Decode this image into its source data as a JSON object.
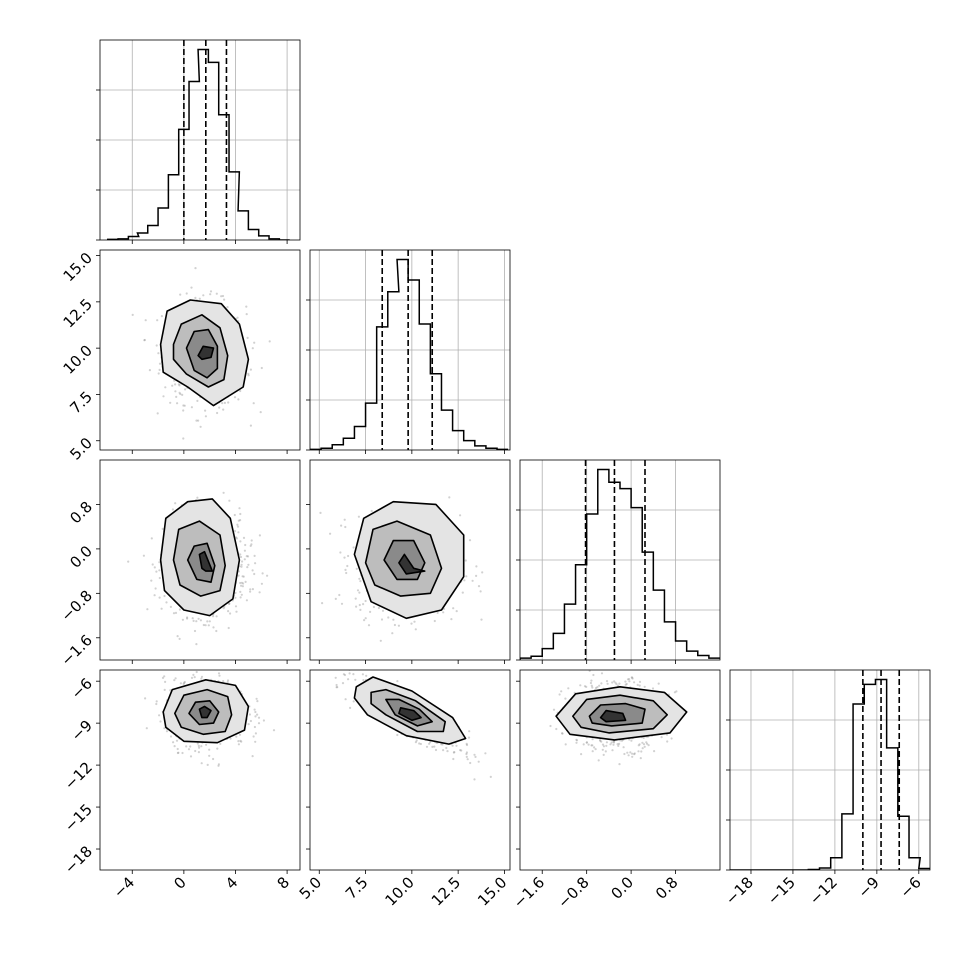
{
  "chart_data": {
    "type": "corner",
    "grid": true,
    "variables": [
      {
        "range": [
          -6.5,
          9.0
        ],
        "ticks": [
          -4,
          0,
          4,
          8
        ],
        "tick_labels": [
          "−4",
          "0",
          "4",
          "8"
        ],
        "quantiles": [
          0.0,
          1.7,
          3.3
        ],
        "histogram": {
          "bin_centers": [
            -5.5,
            -4.7,
            -3.9,
            -3.2,
            -2.4,
            -1.6,
            -0.8,
            0.0,
            0.8,
            1.5,
            2.3,
            3.1,
            3.9,
            4.6,
            5.4,
            6.2,
            7.0,
            7.8
          ],
          "counts": [
            1,
            2,
            6,
            12,
            25,
            55,
            112,
            190,
            272,
            327,
            305,
            215,
            117,
            50,
            18,
            7,
            2,
            0
          ]
        }
      },
      {
        "range": [
          4.5,
          15.3
        ],
        "ticks": [
          5.0,
          7.5,
          10.0,
          12.5,
          15.0
        ],
        "tick_labels": [
          "5.0",
          "7.5",
          "10.0",
          "12.5",
          "15.0"
        ],
        "quantiles": [
          8.4,
          9.8,
          11.1
        ],
        "histogram": {
          "bin_centers": [
            4.8,
            5.4,
            6.0,
            6.6,
            7.2,
            7.8,
            8.4,
            9.0,
            9.5,
            10.1,
            10.7,
            11.3,
            11.9,
            12.5,
            13.1,
            13.7,
            14.3,
            14.9
          ],
          "counts": [
            1,
            3,
            9,
            20,
            40,
            80,
            210,
            270,
            325,
            290,
            215,
            130,
            68,
            33,
            16,
            7,
            3,
            1
          ]
        }
      },
      {
        "range": [
          -2.0,
          1.6
        ],
        "ticks": [
          -1.6,
          -0.8,
          0.0,
          0.8
        ],
        "tick_labels": [
          "−1.6",
          "−0.8",
          "0.0",
          "0.8"
        ],
        "quantiles": [
          -0.82,
          -0.3,
          0.25
        ],
        "histogram": {
          "bin_centers": [
            -1.9,
            -1.7,
            -1.5,
            -1.3,
            -1.1,
            -0.9,
            -0.7,
            -0.5,
            -0.3,
            -0.1,
            0.1,
            0.3,
            0.5,
            0.7,
            0.9,
            1.1,
            1.3,
            1.5
          ],
          "counts": [
            3,
            6,
            18,
            42,
            88,
            150,
            230,
            300,
            280,
            270,
            240,
            170,
            110,
            60,
            30,
            14,
            7,
            3
          ]
        }
      },
      {
        "range": [
          -19.5,
          -5.2
        ],
        "ticks": [
          -18,
          -15,
          -12,
          -9,
          -6
        ],
        "tick_labels": [
          "−18",
          "−15",
          "−12",
          "−9",
          "−6"
        ],
        "quantiles": [
          -10.0,
          -8.7,
          -7.4
        ],
        "histogram": {
          "bin_centers": [
            -19.1,
            -18.3,
            -17.5,
            -16.7,
            -15.9,
            -15.1,
            -14.3,
            -13.5,
            -12.7,
            -11.9,
            -11.1,
            -10.3,
            -9.5,
            -8.7,
            -7.9,
            -7.1,
            -6.3,
            -5.6
          ],
          "counts": [
            0,
            0,
            0,
            0,
            0,
            0,
            0,
            1,
            4,
            25,
            115,
            340,
            380,
            390,
            250,
            110,
            25,
            3
          ]
        }
      }
    ],
    "pairs": [
      {
        "row": 1,
        "col": 0,
        "center": [
          1.6,
          9.7
        ],
        "sigma": [
          1.6,
          1.4
        ],
        "rho": -0.1,
        "contours": [
          [
            [
              -1.8,
              10.2
            ],
            [
              -1.3,
              12.0
            ],
            [
              0.5,
              12.6
            ],
            [
              2.9,
              12.4
            ],
            [
              4.3,
              11.3
            ],
            [
              5.0,
              9.4
            ],
            [
              4.6,
              7.9
            ],
            [
              2.3,
              6.9
            ],
            [
              0.3,
              7.9
            ],
            [
              -1.6,
              8.7
            ]
          ],
          [
            [
              -0.8,
              10.2
            ],
            [
              -0.2,
              11.3
            ],
            [
              1.4,
              11.8
            ],
            [
              2.8,
              11.1
            ],
            [
              3.4,
              9.6
            ],
            [
              3.1,
              8.3
            ],
            [
              1.9,
              7.9
            ],
            [
              0.2,
              8.6
            ],
            [
              -0.8,
              9.4
            ]
          ],
          [
            [
              0.2,
              10.0
            ],
            [
              0.8,
              10.9
            ],
            [
              1.9,
              11.0
            ],
            [
              2.6,
              10.1
            ],
            [
              2.6,
              8.9
            ],
            [
              1.8,
              8.4
            ],
            [
              0.8,
              8.8
            ]
          ],
          [
            [
              1.1,
              9.6
            ],
            [
              1.5,
              10.1
            ],
            [
              2.3,
              10.0
            ],
            [
              2.1,
              9.5
            ],
            [
              1.4,
              9.4
            ]
          ]
        ]
      },
      {
        "row": 2,
        "col": 0,
        "center": [
          1.7,
          -0.3
        ],
        "sigma": [
          1.6,
          0.45
        ],
        "rho": 0.0,
        "contours": [
          [
            [
              -1.8,
              -0.2
            ],
            [
              -1.4,
              0.55
            ],
            [
              0.3,
              0.85
            ],
            [
              2.2,
              0.9
            ],
            [
              3.6,
              0.55
            ],
            [
              4.3,
              -0.2
            ],
            [
              3.8,
              -0.9
            ],
            [
              2.0,
              -1.2
            ],
            [
              0.0,
              -1.1
            ],
            [
              -1.5,
              -0.75
            ]
          ],
          [
            [
              -0.8,
              -0.2
            ],
            [
              -0.4,
              0.35
            ],
            [
              1.2,
              0.5
            ],
            [
              2.8,
              0.25
            ],
            [
              3.2,
              -0.3
            ],
            [
              2.8,
              -0.75
            ],
            [
              1.3,
              -0.85
            ],
            [
              -0.3,
              -0.65
            ]
          ],
          [
            [
              0.3,
              -0.2
            ],
            [
              0.8,
              0.05
            ],
            [
              1.8,
              0.1
            ],
            [
              2.4,
              -0.3
            ],
            [
              2.1,
              -0.6
            ],
            [
              1.0,
              -0.55
            ]
          ],
          [
            [
              1.2,
              -0.1
            ],
            [
              1.6,
              -0.05
            ],
            [
              2.2,
              -0.4
            ],
            [
              1.7,
              -0.4
            ],
            [
              1.4,
              -0.35
            ]
          ]
        ]
      },
      {
        "row": 2,
        "col": 1,
        "center": [
          9.8,
          -0.3
        ],
        "sigma": [
          1.4,
          0.45
        ],
        "rho": 0.0,
        "contours": [
          [
            [
              6.9,
              -0.1
            ],
            [
              7.4,
              0.55
            ],
            [
              9.0,
              0.85
            ],
            [
              11.3,
              0.8
            ],
            [
              12.8,
              0.25
            ],
            [
              12.8,
              -0.5
            ],
            [
              11.6,
              -1.1
            ],
            [
              9.7,
              -1.25
            ],
            [
              7.8,
              -0.95
            ]
          ],
          [
            [
              7.5,
              -0.25
            ],
            [
              7.9,
              0.35
            ],
            [
              9.2,
              0.5
            ],
            [
              11.0,
              0.25
            ],
            [
              11.6,
              -0.35
            ],
            [
              11.0,
              -0.8
            ],
            [
              9.4,
              -0.85
            ],
            [
              8.0,
              -0.65
            ]
          ],
          [
            [
              8.5,
              -0.2
            ],
            [
              9.0,
              0.15
            ],
            [
              10.1,
              0.15
            ],
            [
              10.7,
              -0.25
            ],
            [
              10.3,
              -0.55
            ],
            [
              9.2,
              -0.55
            ]
          ],
          [
            [
              9.3,
              -0.25
            ],
            [
              9.6,
              -0.1
            ],
            [
              10.1,
              -0.35
            ],
            [
              10.7,
              -0.4
            ],
            [
              9.7,
              -0.45
            ]
          ]
        ]
      },
      {
        "row": 3,
        "col": 0,
        "center": [
          1.7,
          -8.3
        ],
        "sigma": [
          1.6,
          1.2
        ],
        "rho": 0.0,
        "contours": [
          [
            [
              -1.6,
              -8.2
            ],
            [
              -0.9,
              -6.6
            ],
            [
              1.7,
              -5.9
            ],
            [
              4.0,
              -6.3
            ],
            [
              5.0,
              -7.8
            ],
            [
              4.7,
              -9.5
            ],
            [
              2.6,
              -10.4
            ],
            [
              0.0,
              -10.3
            ],
            [
              -1.4,
              -9.3
            ]
          ],
          [
            [
              -0.7,
              -8.3
            ],
            [
              0.0,
              -7.0
            ],
            [
              1.8,
              -6.6
            ],
            [
              3.4,
              -7.1
            ],
            [
              3.7,
              -8.4
            ],
            [
              3.2,
              -9.6
            ],
            [
              1.5,
              -9.8
            ],
            [
              -0.2,
              -9.3
            ]
          ],
          [
            [
              0.4,
              -8.3
            ],
            [
              0.9,
              -7.5
            ],
            [
              2.0,
              -7.4
            ],
            [
              2.7,
              -8.2
            ],
            [
              2.3,
              -9.0
            ],
            [
              1.2,
              -9.1
            ]
          ],
          [
            [
              1.2,
              -8.0
            ],
            [
              1.6,
              -7.8
            ],
            [
              2.1,
              -8.1
            ],
            [
              1.8,
              -8.6
            ],
            [
              1.4,
              -8.6
            ]
          ]
        ]
      },
      {
        "row": 3,
        "col": 1,
        "center": [
          9.8,
          -8.5
        ],
        "sigma": [
          1.4,
          1.2
        ],
        "rho": -0.85,
        "contours": [
          [
            [
              7.0,
              -6.4
            ],
            [
              7.9,
              -5.7
            ],
            [
              10.0,
              -6.7
            ],
            [
              12.2,
              -8.6
            ],
            [
              12.9,
              -10.1
            ],
            [
              12.0,
              -10.5
            ],
            [
              9.7,
              -9.9
            ],
            [
              7.6,
              -8.4
            ],
            [
              6.9,
              -7.2
            ]
          ],
          [
            [
              7.8,
              -6.8
            ],
            [
              8.6,
              -6.6
            ],
            [
              10.2,
              -7.4
            ],
            [
              11.8,
              -8.9
            ],
            [
              11.7,
              -9.6
            ],
            [
              10.3,
              -9.6
            ],
            [
              8.6,
              -8.4
            ],
            [
              7.8,
              -7.6
            ]
          ],
          [
            [
              8.6,
              -7.3
            ],
            [
              9.3,
              -7.3
            ],
            [
              10.4,
              -8.0
            ],
            [
              11.1,
              -8.9
            ],
            [
              10.3,
              -9.2
            ],
            [
              9.1,
              -8.4
            ]
          ],
          [
            [
              9.4,
              -7.9
            ],
            [
              10.1,
              -8.1
            ],
            [
              10.5,
              -8.6
            ],
            [
              10.0,
              -8.8
            ],
            [
              9.3,
              -8.3
            ]
          ]
        ]
      },
      {
        "row": 3,
        "col": 2,
        "center": [
          -0.3,
          -8.4
        ],
        "sigma": [
          0.45,
          1.2
        ],
        "rho": 0.0,
        "contours": [
          [
            [
              -1.35,
              -8.5
            ],
            [
              -1.0,
              -6.9
            ],
            [
              -0.2,
              -6.4
            ],
            [
              0.6,
              -6.8
            ],
            [
              1.0,
              -8.2
            ],
            [
              0.7,
              -9.7
            ],
            [
              -0.3,
              -10.2
            ],
            [
              -1.1,
              -9.8
            ]
          ],
          [
            [
              -1.05,
              -8.5
            ],
            [
              -0.8,
              -7.3
            ],
            [
              -0.2,
              -7.0
            ],
            [
              0.4,
              -7.4
            ],
            [
              0.65,
              -8.4
            ],
            [
              0.4,
              -9.4
            ],
            [
              -0.4,
              -9.7
            ],
            [
              -0.9,
              -9.3
            ]
          ],
          [
            [
              -0.75,
              -8.5
            ],
            [
              -0.55,
              -7.7
            ],
            [
              -0.1,
              -7.6
            ],
            [
              0.25,
              -8.0
            ],
            [
              0.2,
              -9.0
            ],
            [
              -0.35,
              -9.2
            ],
            [
              -0.7,
              -9.0
            ]
          ],
          [
            [
              -0.55,
              -8.6
            ],
            [
              -0.45,
              -8.1
            ],
            [
              -0.15,
              -8.3
            ],
            [
              -0.1,
              -8.8
            ],
            [
              -0.45,
              -8.9
            ]
          ]
        ]
      }
    ]
  }
}
